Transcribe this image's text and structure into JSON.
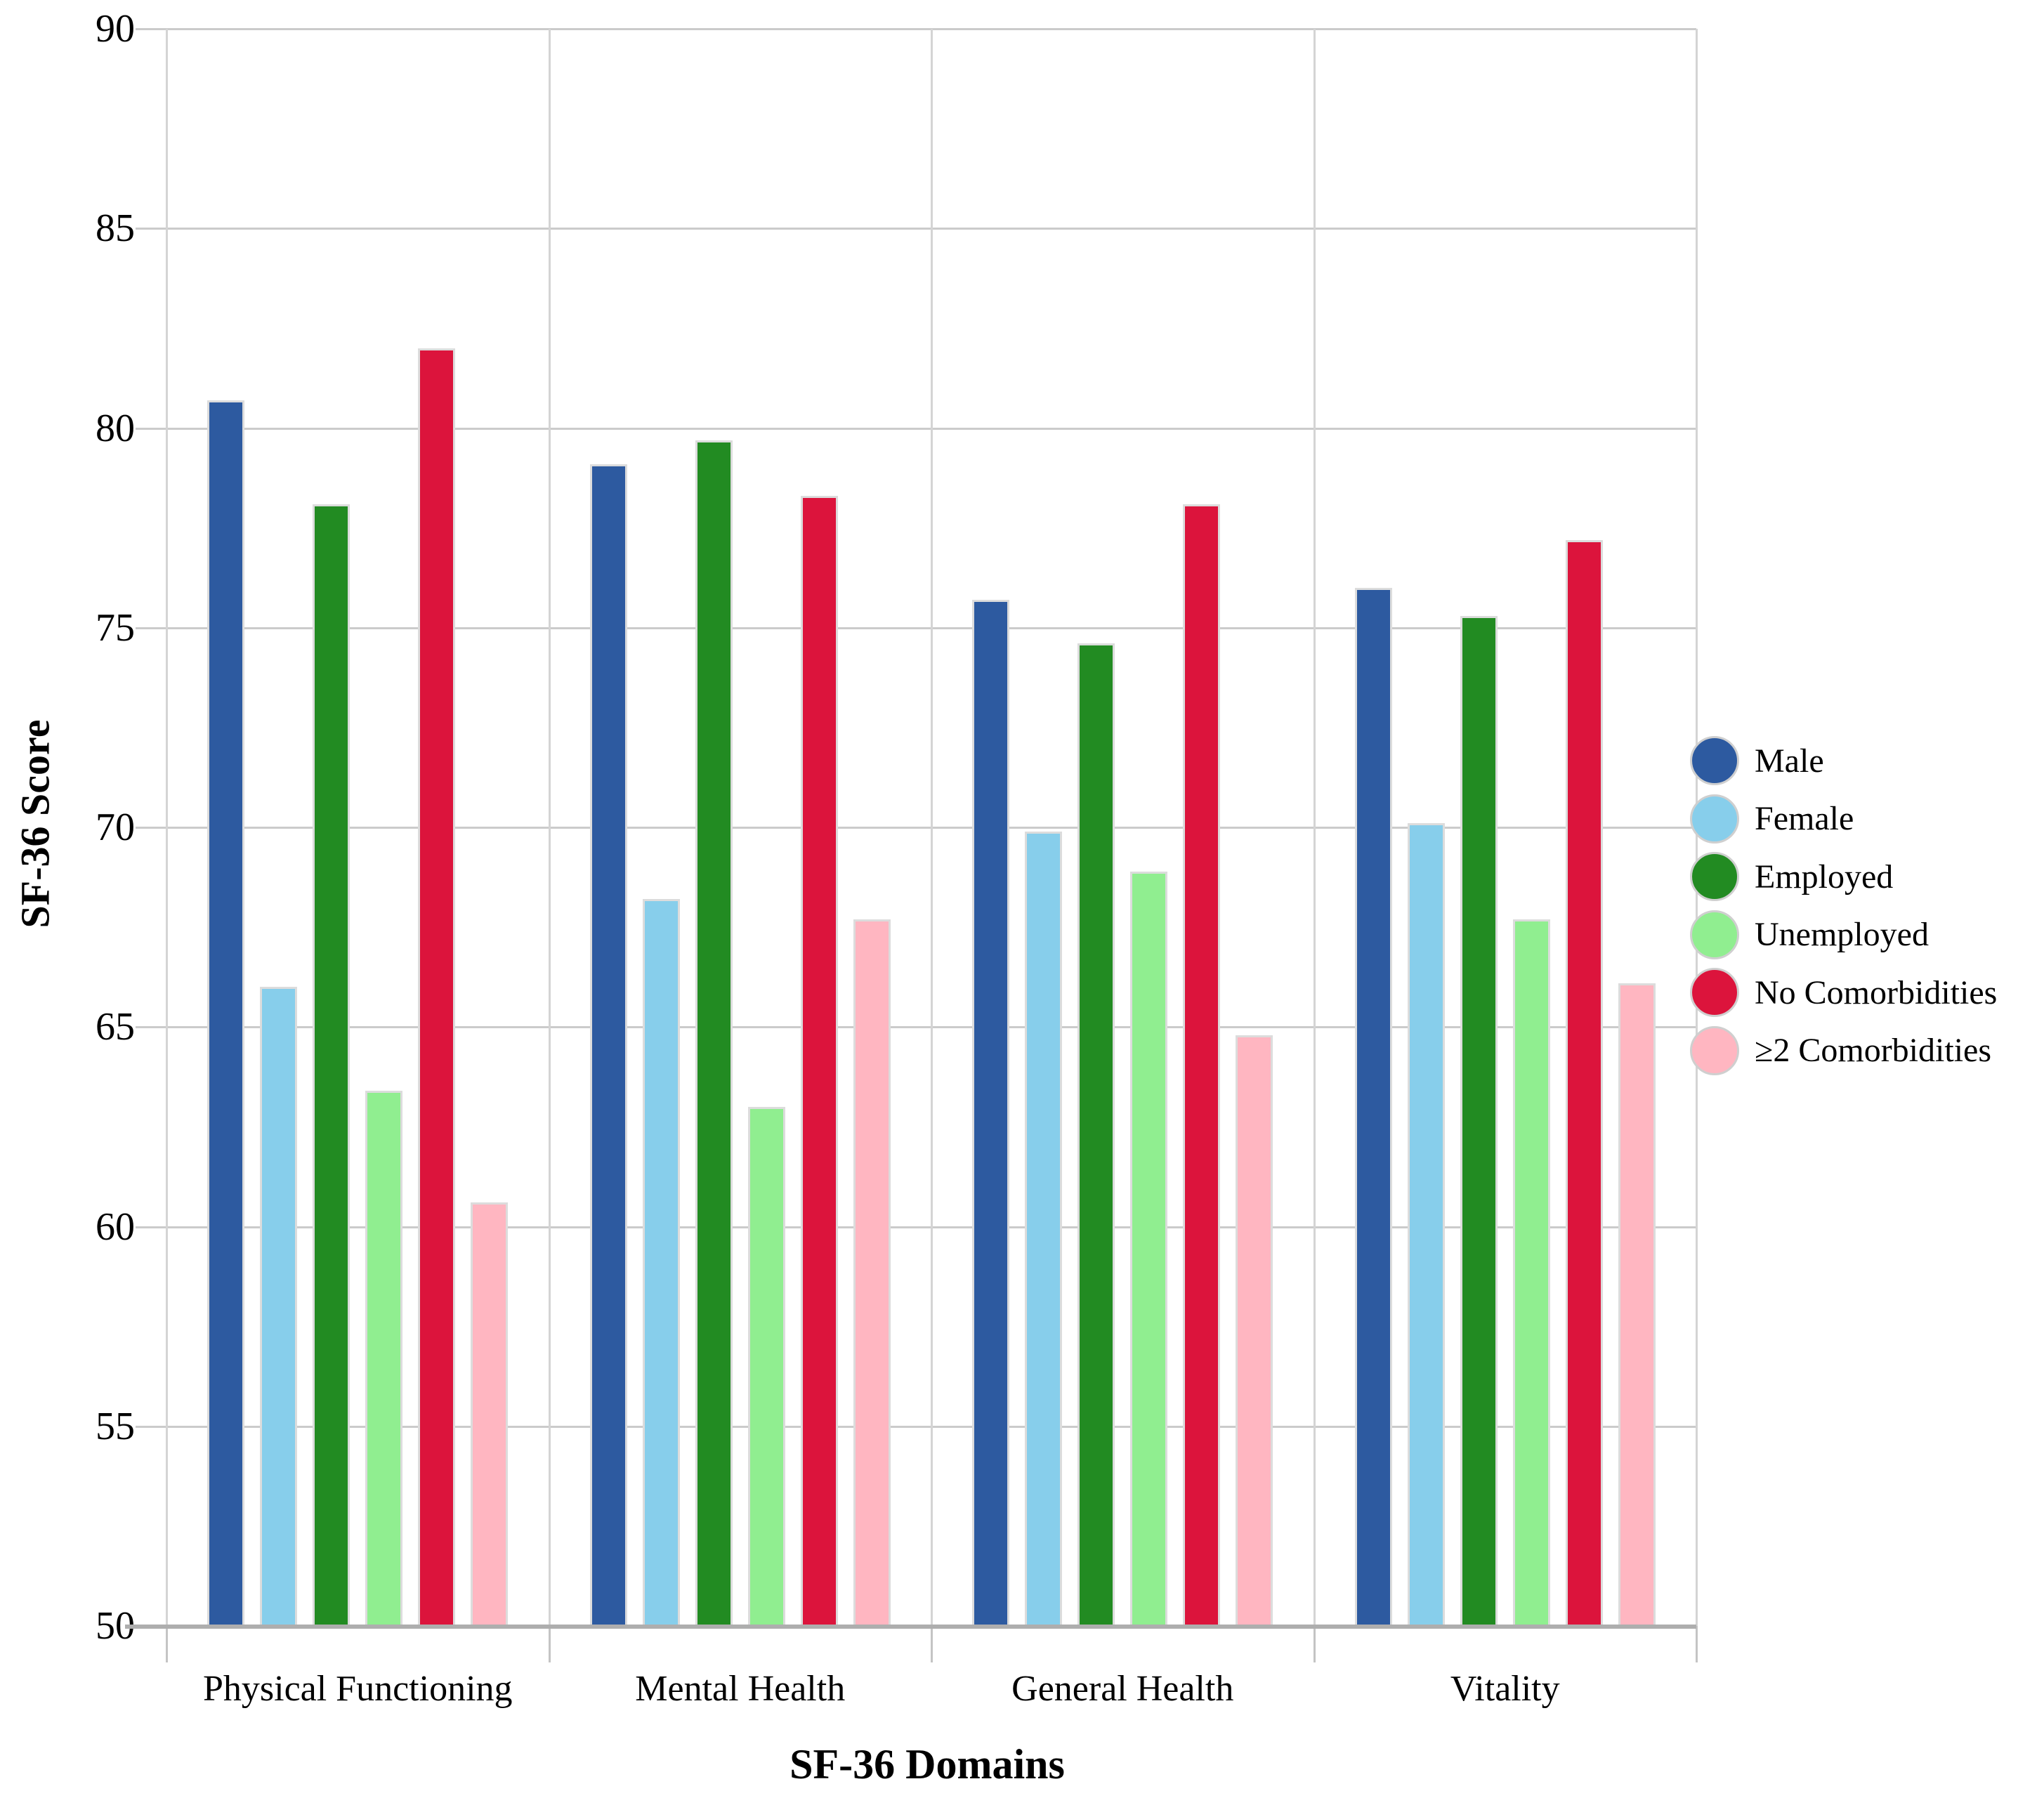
{
  "chart_data": {
    "type": "bar",
    "title": "",
    "xlabel": "SF-36 Domains",
    "ylabel": "SF-36 Score",
    "ylim": [
      50,
      90
    ],
    "ytick_step": 5,
    "grid": true,
    "legend_position": "right",
    "background_color": "#ffffff",
    "gridline_color": "#cbcbcb",
    "axis_line_color": "#aeaeae",
    "categories": [
      "Physical Functioning",
      "Mental Health",
      "General Health",
      "Vitality"
    ],
    "series": [
      {
        "name": "Male",
        "color": "#2d5aa0",
        "values": [
          80.7,
          79.1,
          75.7,
          76.0
        ]
      },
      {
        "name": "Female",
        "color": "#87ceeb",
        "values": [
          66.0,
          68.2,
          69.9,
          70.1
        ]
      },
      {
        "name": "Employed",
        "color": "#228b22",
        "values": [
          78.1,
          79.7,
          74.6,
          75.3
        ]
      },
      {
        "name": "Unemployed",
        "color": "#90ee90",
        "values": [
          63.4,
          63.0,
          68.9,
          67.7
        ]
      },
      {
        "name": "No Comorbidities",
        "color": "#dc143c",
        "values": [
          82.0,
          78.3,
          78.1,
          77.2
        ]
      },
      {
        "name": "≥2 Comorbidities",
        "color": "#ffb6c1",
        "values": [
          60.6,
          67.7,
          64.8,
          66.1
        ]
      }
    ],
    "ytick_labels": [
      "90",
      "85",
      "80",
      "75",
      "70",
      "65",
      "60",
      "55",
      "50"
    ]
  }
}
